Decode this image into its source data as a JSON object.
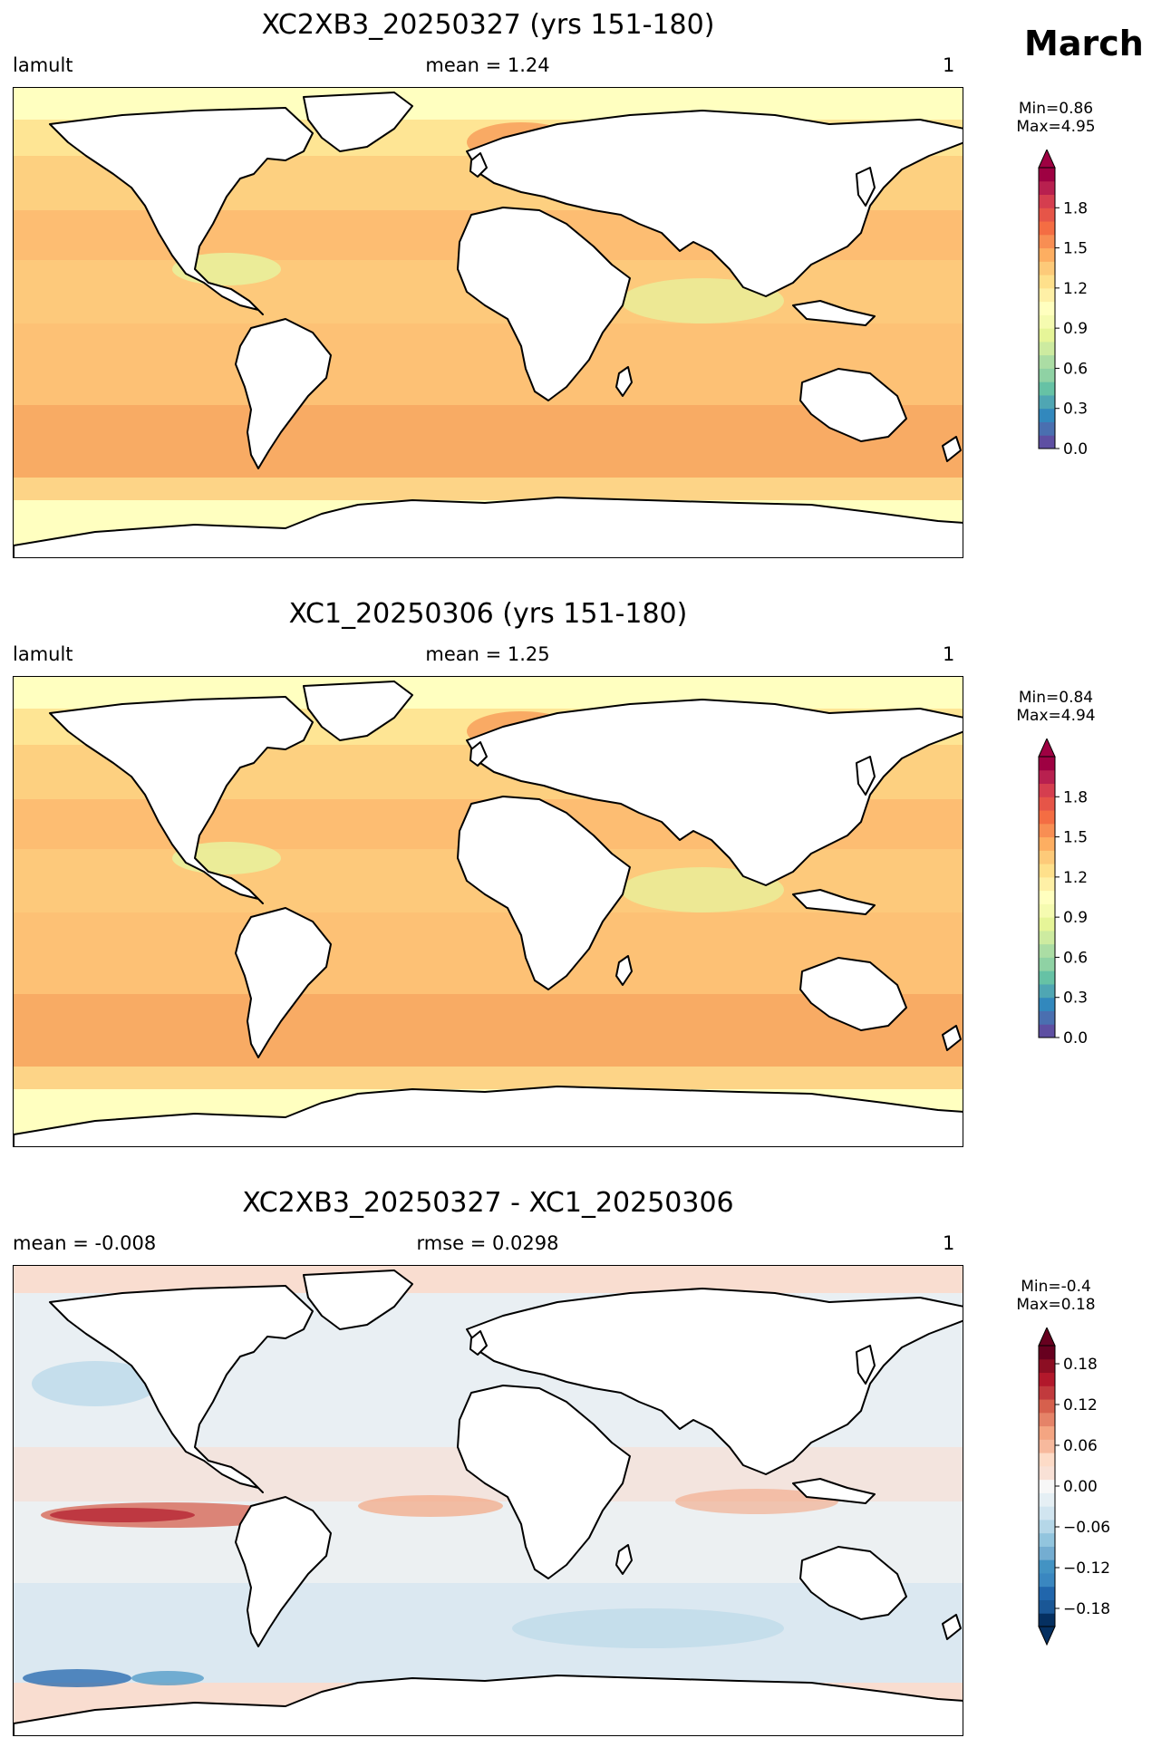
{
  "month": "March",
  "panels": [
    {
      "title": "XC2XB3_20250327 (yrs 151-180)",
      "left_label": "lamult",
      "center_label": "mean = 1.24",
      "right_label": "1",
      "min_label": "Min=0.86",
      "max_label": "Max=4.95",
      "ocean_color": "#fdc176",
      "cbar_ticks": [
        "0.0",
        "0.3",
        "0.6",
        "0.9",
        "1.2",
        "1.5",
        "1.8"
      ],
      "cbar_colors": [
        "#5e4fa2",
        "#4a6fb0",
        "#3288bd",
        "#4fa6b3",
        "#66c2a5",
        "#8fd2a4",
        "#abdda4",
        "#cdeba0",
        "#e6f598",
        "#f5fbb0",
        "#ffffbf",
        "#fef0a6",
        "#fee08b",
        "#fdca79",
        "#fdae61",
        "#f88e53",
        "#f46d43",
        "#e65548",
        "#d53e4f",
        "#b8204f",
        "#9e0142"
      ],
      "tint_colors": {
        "cool": "#fee594",
        "warm": "#f8aa63",
        "polar": "#ffffc0",
        "yellow": "#e6f5a0"
      }
    },
    {
      "title": "XC1_20250306 (yrs 151-180)",
      "left_label": "lamult",
      "center_label": "mean = 1.25",
      "right_label": "1",
      "min_label": "Min=0.84",
      "max_label": "Max=4.94",
      "ocean_color": "#fdc176",
      "cbar_ticks": [
        "0.0",
        "0.3",
        "0.6",
        "0.9",
        "1.2",
        "1.5",
        "1.8"
      ],
      "cbar_colors": [
        "#5e4fa2",
        "#4a6fb0",
        "#3288bd",
        "#4fa6b3",
        "#66c2a5",
        "#8fd2a4",
        "#abdda4",
        "#cdeba0",
        "#e6f598",
        "#f5fbb0",
        "#ffffbf",
        "#fef0a6",
        "#fee08b",
        "#fdca79",
        "#fdae61",
        "#f88e53",
        "#f46d43",
        "#e65548",
        "#d53e4f",
        "#b8204f",
        "#9e0142"
      ],
      "tint_colors": {
        "cool": "#fee594",
        "warm": "#f8aa63",
        "polar": "#ffffc0",
        "yellow": "#e6f5a0"
      }
    },
    {
      "title": "XC2XB3_20250327 - XC1_20250306",
      "left_label": "mean = -0.008",
      "center_label": "rmse = 0.0298",
      "right_label": "1",
      "min_label": "Min=-0.4",
      "max_label": "Max=0.18",
      "ocean_color": "#e8eef2",
      "cbar_ticks": [
        "−0.18",
        "−0.12",
        "−0.06",
        "0.00",
        "0.06",
        "0.12",
        "0.18"
      ],
      "cbar_colors": [
        "#053061",
        "#1a5796",
        "#2166ac",
        "#3a87c0",
        "#4393c3",
        "#74add1",
        "#92c5de",
        "#b5d7e8",
        "#d1e5f0",
        "#e5eff4",
        "#f7f7f7",
        "#f9e1d6",
        "#fddbc7",
        "#f7b99d",
        "#f4a582",
        "#e58368",
        "#d6604d",
        "#c13a3d",
        "#b2182b",
        "#8c0e23",
        "#67001f"
      ],
      "tint_colors": {
        "cool": "#d1e5f0",
        "warm": "#f9cdb5",
        "polar": "#f9ddd0",
        "yellow": "#d6604d"
      }
    }
  ]
}
